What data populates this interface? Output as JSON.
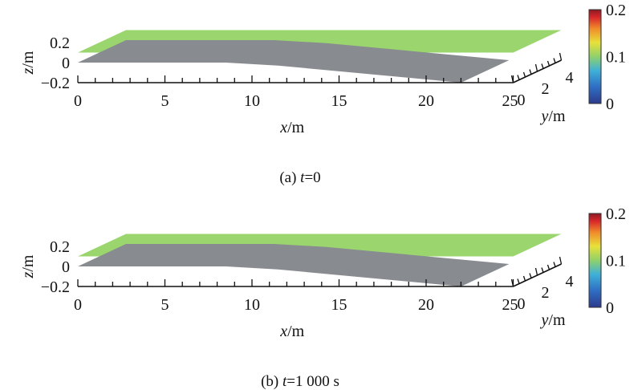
{
  "chart_data": [
    {
      "type": "surface3d",
      "caption": {
        "prefix": "(a) ",
        "var": "t",
        "rest": "=0"
      },
      "xlabel": {
        "var": "x",
        "unit": "/m"
      },
      "ylabel": {
        "var": "y",
        "unit": "/m"
      },
      "zlabel": {
        "var": "z",
        "unit": "/m"
      },
      "xlim": [
        0,
        25
      ],
      "ylim": [
        0,
        4
      ],
      "zlim": [
        -0.2,
        0.2
      ],
      "x_ticks": [
        "0",
        "5",
        "10",
        "15",
        "20",
        "25"
      ],
      "y_ticks": [
        "0",
        "2",
        "4"
      ],
      "z_ticks": [
        "0.2",
        "0",
        "−0.2"
      ],
      "colorbar": {
        "ticks": [
          "0.2",
          "0.1",
          "0"
        ],
        "range": [
          0,
          0.2
        ]
      },
      "surfaces": [
        {
          "name": "water surface",
          "color": "#9ad56e",
          "z": 0.1
        },
        {
          "name": "bed",
          "color": "#888b8f",
          "profile_x": [
            0,
            8.5,
            11.5,
            22
          ],
          "profile_z": [
            0,
            0,
            -0.03,
            -0.2
          ]
        }
      ]
    },
    {
      "type": "surface3d",
      "caption": {
        "prefix": "(b) ",
        "var": "t",
        "rest": "=1 000 s"
      },
      "xlabel": {
        "var": "x",
        "unit": "/m"
      },
      "ylabel": {
        "var": "y",
        "unit": "/m"
      },
      "zlabel": {
        "var": "z",
        "unit": "/m"
      },
      "xlim": [
        0,
        25
      ],
      "ylim": [
        0,
        4
      ],
      "zlim": [
        -0.2,
        0.2
      ],
      "x_ticks": [
        "0",
        "5",
        "10",
        "15",
        "20",
        "25"
      ],
      "y_ticks": [
        "0",
        "2",
        "4"
      ],
      "z_ticks": [
        "0.2",
        "0",
        "−0.2"
      ],
      "colorbar": {
        "ticks": [
          "0.2",
          "0.1",
          "0"
        ],
        "range": [
          0,
          0.2
        ]
      },
      "surfaces": [
        {
          "name": "water surface",
          "color": "#9ad56e",
          "z": 0.1
        },
        {
          "name": "bed",
          "color": "#888b8f",
          "profile_x": [
            0,
            8.5,
            11.5,
            22
          ],
          "profile_z": [
            0,
            0,
            -0.03,
            -0.2
          ]
        }
      ]
    }
  ]
}
